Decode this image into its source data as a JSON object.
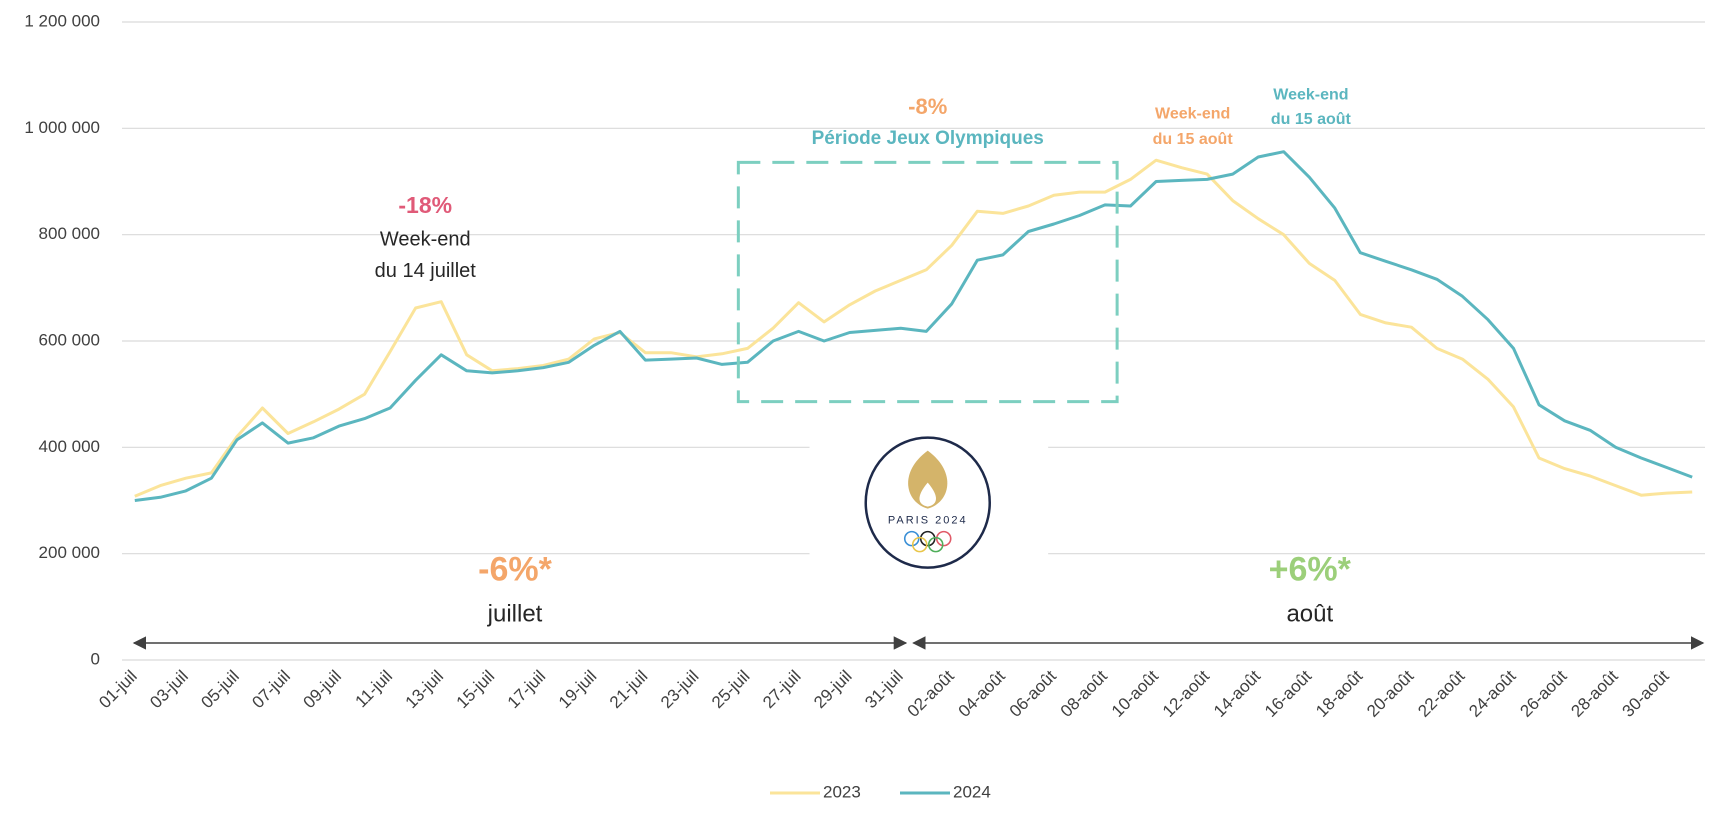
{
  "chart_data": {
    "type": "line",
    "categories": [
      "01-juil",
      null,
      "03-juil",
      null,
      "05-juil",
      null,
      "07-juil",
      null,
      "09-juil",
      null,
      "11-juil",
      null,
      "13-juil",
      null,
      "15-juil",
      null,
      "17-juil",
      null,
      "19-juil",
      null,
      "21-juil",
      null,
      "23-juil",
      null,
      "25-juil",
      null,
      "27-juil",
      null,
      "29-juil",
      null,
      "31-juil",
      null,
      "02-août",
      null,
      "04-août",
      null,
      "06-août",
      null,
      "08-août",
      null,
      "10-août",
      null,
      "12-août",
      null,
      "14-août",
      null,
      "16-août",
      null,
      "18-août",
      null,
      "20-août",
      null,
      "22-août",
      null,
      "24-août",
      null,
      "26-août",
      null,
      "28-août",
      null,
      "30-août",
      null
    ],
    "series": [
      {
        "name": "2023",
        "color": "#fbe49a",
        "values": [
          308000,
          328000,
          342000,
          352000,
          420000,
          474000,
          426000,
          448000,
          472000,
          500000,
          580000,
          662000,
          674000,
          574000,
          544000,
          548000,
          554000,
          566000,
          604000,
          616000,
          578000,
          578000,
          570000,
          576000,
          586000,
          624000,
          672000,
          636000,
          668000,
          694000,
          714000,
          734000,
          780000,
          844000,
          840000,
          854000,
          874000,
          880000,
          880000,
          904000,
          940000,
          926000,
          914000,
          864000,
          830000,
          800000,
          746000,
          714000,
          650000,
          634000,
          626000,
          586000,
          566000,
          528000,
          476000,
          380000,
          360000,
          346000,
          328000,
          310000,
          314000,
          316000
        ]
      },
      {
        "name": "2024",
        "color": "#5bb6bf",
        "values": [
          300000,
          306000,
          318000,
          342000,
          414000,
          446000,
          408000,
          418000,
          440000,
          454000,
          474000,
          526000,
          574000,
          544000,
          540000,
          544000,
          550000,
          560000,
          592000,
          618000,
          564000,
          566000,
          568000,
          556000,
          560000,
          600000,
          618000,
          600000,
          616000,
          620000,
          624000,
          618000,
          670000,
          752000,
          762000,
          806000,
          820000,
          836000,
          856000,
          854000,
          900000,
          902000,
          904000,
          914000,
          946000,
          956000,
          908000,
          850000,
          766000,
          750000,
          734000,
          716000,
          684000,
          640000,
          586000,
          480000,
          450000,
          432000,
          400000,
          380000,
          362000,
          344000
        ]
      }
    ],
    "ylim": [
      0,
      1200000
    ],
    "yticks": [
      0,
      {
        "value": 200000,
        "label": "200 000"
      },
      {
        "value": 400000,
        "label": "400 000"
      },
      {
        "value": 600000,
        "label": "600 000"
      },
      {
        "value": 800000,
        "label": "800 000"
      },
      {
        "value": 1000000,
        "label": "1 000 000"
      },
      {
        "value": 1200000,
        "label": "1 200 000"
      }
    ],
    "grid": true,
    "legend": "bottom",
    "annotations": [
      {
        "text": "-18%",
        "color": "#e05a78"
      },
      {
        "text": "Week-end",
        "color": "#262626"
      },
      {
        "text": "du 14 juillet",
        "color": "#262626"
      },
      {
        "text": "-8%",
        "color": "#f4a66a"
      },
      {
        "text": "Période Jeux Olympiques",
        "color": "#5bb6bf"
      },
      {
        "text": "Week-end",
        "color": "#f4a66a"
      },
      {
        "text": "du 15 août",
        "color": "#f4a66a"
      },
      {
        "text": "Week-end",
        "color": "#5bb6bf"
      },
      {
        "text": "du 15 août",
        "color": "#5bb6bf"
      },
      {
        "text": "-6%*",
        "color": "#f4a66a"
      },
      {
        "text": "juillet",
        "color": "#262626"
      },
      {
        "text": "+6%*",
        "color": "#9ccf7a"
      },
      {
        "text": "août",
        "color": "#262626"
      }
    ],
    "logo": "PARIS 2024"
  }
}
